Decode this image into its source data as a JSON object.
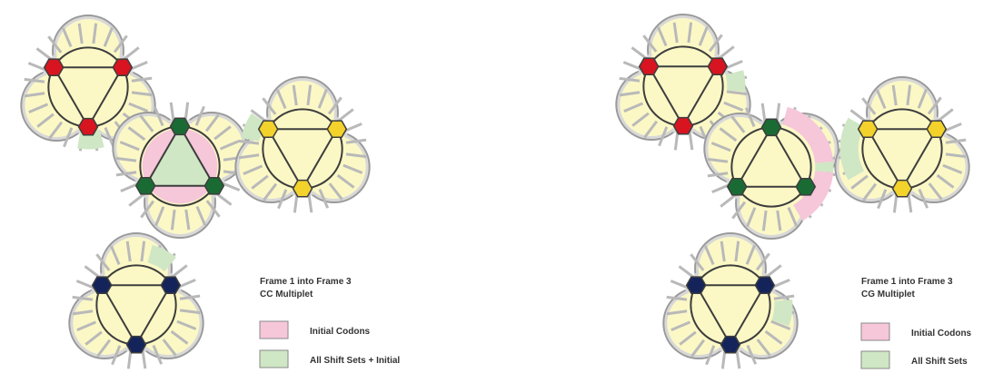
{
  "colors": {
    "tile_fill": "#fbf8c6",
    "tile_border": "#9a9a9a",
    "tile_outer": "#d8d8d8",
    "line": "#3d3d3d",
    "initial_codons": "#f6c6d9",
    "shift_sets": "#cfe7c4",
    "red_node": "#d81421",
    "green_node": "#1a6b33",
    "yellow_node": "#f2d22b",
    "navy_node": "#14245a"
  },
  "panels": [
    {
      "id": "cc",
      "title_line1": "Frame 1 into Frame 3",
      "title_line2": "CC Multiplet",
      "legend": [
        {
          "label": "Initial Codons",
          "color_key": "initial_codons"
        },
        {
          "label": "All Shift Sets + Initial",
          "color_key": "shift_sets"
        }
      ],
      "tiles": [
        {
          "name": "red-tile",
          "node_color": "red_node"
        },
        {
          "name": "green-tile",
          "node_color": "green_node"
        },
        {
          "name": "yellow-tile",
          "node_color": "yellow_node"
        },
        {
          "name": "navy-tile",
          "node_color": "navy_node"
        }
      ]
    },
    {
      "id": "cg",
      "title_line1": "Frame 1 into Frame 3",
      "title_line2": "CG Multiplet",
      "legend": [
        {
          "label": "Initial Codons",
          "color_key": "initial_codons"
        },
        {
          "label": "All Shift Sets",
          "color_key": "shift_sets"
        }
      ],
      "tiles": [
        {
          "name": "red-tile",
          "node_color": "red_node"
        },
        {
          "name": "green-tile",
          "node_color": "green_node"
        },
        {
          "name": "yellow-tile",
          "node_color": "yellow_node"
        },
        {
          "name": "navy-tile",
          "node_color": "navy_node"
        }
      ]
    }
  ]
}
